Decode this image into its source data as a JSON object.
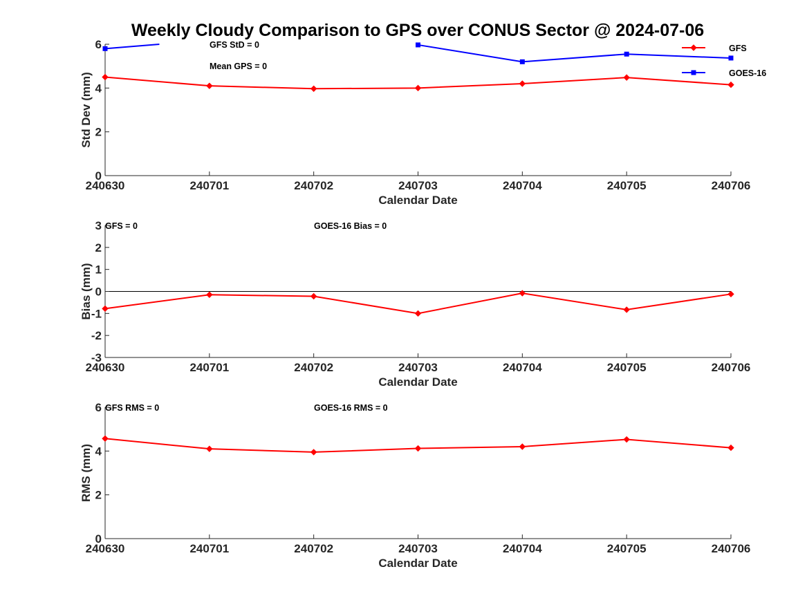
{
  "chart_data": [
    {
      "type": "line",
      "title": "Weekly Cloudy Comparison to GPS over CONUS Sector @ 2024-07-06",
      "xlabel": "Calendar Date",
      "ylabel": "Std Dev (mm)",
      "categories": [
        "240630",
        "240701",
        "240702",
        "240703",
        "240704",
        "240705",
        "240706"
      ],
      "ylim": [
        0,
        6
      ],
      "yticks": [
        "0",
        "2",
        "4",
        "6"
      ],
      "annotations": [
        "GFS StD = 0",
        "Mean GPS = 0"
      ],
      "legend": {
        "position": "top-right",
        "entries": [
          "GFS",
          "GOES-16"
        ]
      },
      "series": [
        {
          "name": "GFS",
          "color": "#ff0000",
          "marker": "diamond",
          "values": [
            4.5,
            4.1,
            3.97,
            4.0,
            4.2,
            4.48,
            4.15
          ]
        },
        {
          "name": "GOES-16",
          "color": "#0000ff",
          "marker": "square",
          "values": [
            5.8,
            null,
            null,
            5.97,
            5.2,
            5.55,
            5.37
          ],
          "extra_segment": {
            "from_x": 0,
            "to_x": 0.52,
            "from_y": 5.8,
            "to_y": 6.0
          }
        }
      ]
    },
    {
      "type": "line",
      "xlabel": "Calendar Date",
      "ylabel": "Bias (mm)",
      "categories": [
        "240630",
        "240701",
        "240702",
        "240703",
        "240704",
        "240705",
        "240706"
      ],
      "ylim": [
        -3,
        3
      ],
      "yticks": [
        "-3",
        "-2",
        "-1",
        "0",
        "1",
        "2",
        "3"
      ],
      "zero_line": true,
      "annotations": [
        "GFS = 0",
        "GOES-16 Bias  = 0"
      ],
      "series": [
        {
          "name": "GFS",
          "color": "#ff0000",
          "marker": "diamond",
          "values": [
            -0.78,
            -0.15,
            -0.22,
            -1.0,
            -0.08,
            -0.83,
            -0.12
          ]
        }
      ]
    },
    {
      "type": "line",
      "xlabel": "Calendar Date",
      "ylabel": "RMS (mm)",
      "categories": [
        "240630",
        "240701",
        "240702",
        "240703",
        "240704",
        "240705",
        "240706"
      ],
      "ylim": [
        0,
        6
      ],
      "yticks": [
        "0",
        "2",
        "4",
        "6"
      ],
      "annotations": [
        "GFS RMS = 0",
        "GOES-16 RMS = 0"
      ],
      "series": [
        {
          "name": "GFS",
          "color": "#ff0000",
          "marker": "diamond",
          "values": [
            4.57,
            4.1,
            3.95,
            4.12,
            4.2,
            4.53,
            4.15
          ]
        }
      ]
    }
  ]
}
